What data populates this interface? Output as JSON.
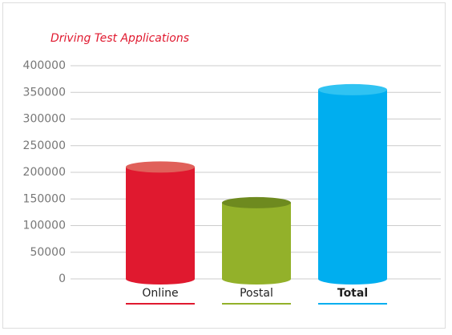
{
  "chart_data": {
    "type": "cylinder-bar",
    "title": "Driving Test Applications",
    "categories": [
      "Online",
      "Postal",
      "Total"
    ],
    "values": [
      210000,
      143000,
      355000
    ],
    "colors": [
      "#e0192f",
      "#93b12a",
      "#00aeef"
    ],
    "top_colors": [
      "#e0605a",
      "#6e8a1f",
      "#30c3f2"
    ],
    "ylim": [
      0,
      400000
    ],
    "yticks": [
      0,
      50000,
      100000,
      150000,
      200000,
      250000,
      300000,
      350000,
      400000
    ],
    "grid": true
  }
}
